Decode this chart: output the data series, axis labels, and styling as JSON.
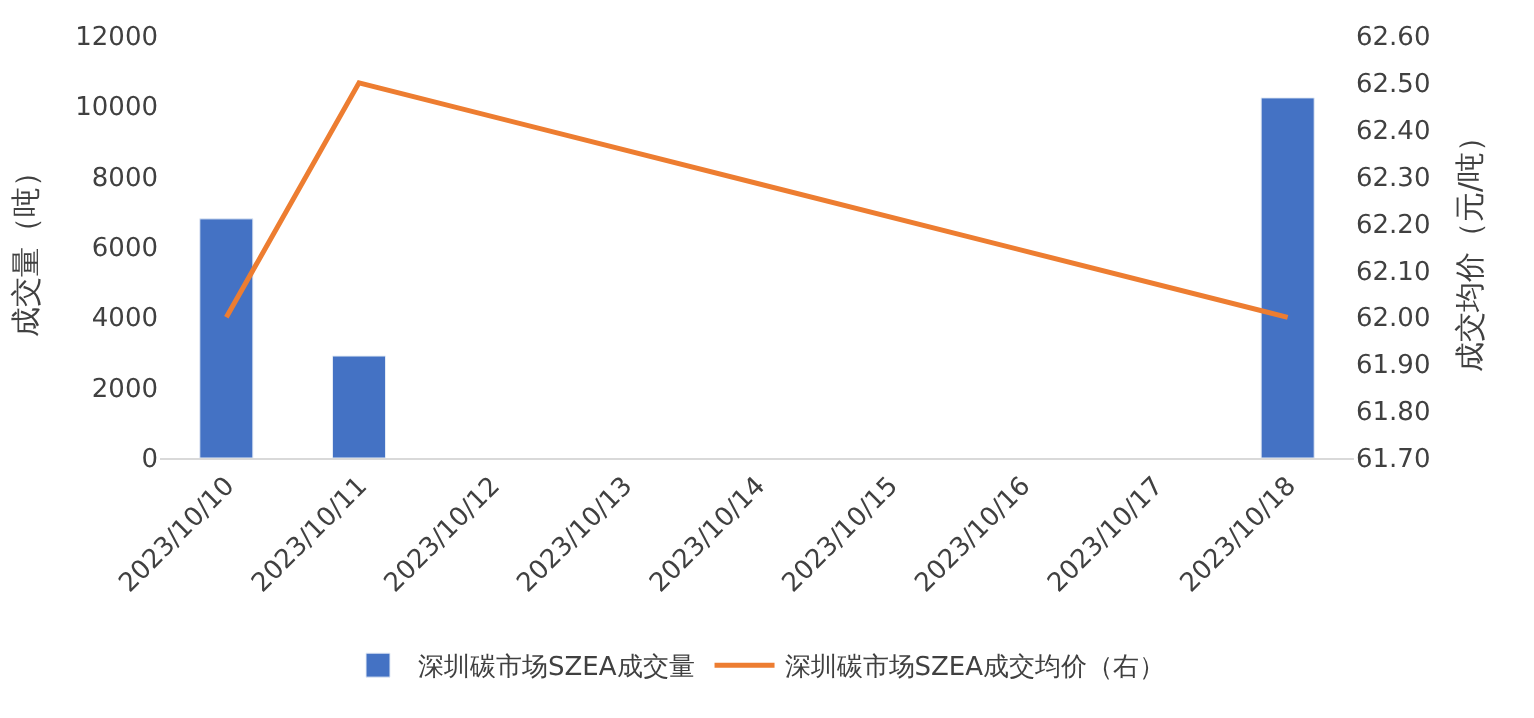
{
  "chart_data": {
    "type": "bar",
    "categories": [
      "2023/10/10",
      "2023/10/11",
      "2023/10/12",
      "2023/10/13",
      "2023/10/14",
      "2023/10/15",
      "2023/10/16",
      "2023/10/17",
      "2023/10/18"
    ],
    "series": [
      {
        "name": "深圳碳市场SZEA成交量",
        "color": "#4472c4",
        "values": [
          6800,
          2900,
          null,
          null,
          null,
          null,
          null,
          null,
          10240
        ]
      },
      {
        "name": "深圳碳市场SZEA成交均价（右）",
        "type": "line",
        "axis": "y2",
        "color": "#ed7d31",
        "values": [
          62.0,
          62.5,
          null,
          null,
          null,
          null,
          null,
          null,
          62.0
        ]
      }
    ],
    "ylabel": "成交量（吨）",
    "y2label": "成交均价（元/吨）",
    "ylim": [
      0,
      12000
    ],
    "yticks": [
      0,
      2000,
      4000,
      6000,
      8000,
      10000,
      12000
    ],
    "y2lim": [
      61.7,
      62.6
    ],
    "y2ticks": [
      {
        "value": 61.7,
        "label": "61.70"
      },
      {
        "value": 61.8,
        "label": "61.80"
      },
      {
        "value": 61.9,
        "label": "61.90"
      },
      {
        "value": 62.0,
        "label": "62.00"
      },
      {
        "value": 62.1,
        "label": "62.10"
      },
      {
        "value": 62.2,
        "label": "62.20"
      },
      {
        "value": 62.3,
        "label": "62.30"
      },
      {
        "value": 62.4,
        "label": "62.40"
      },
      {
        "value": 62.5,
        "label": "62.50"
      },
      {
        "value": 62.6,
        "label": "62.60"
      }
    ],
    "legend": "bottom",
    "marker": "none",
    "line_style": "solid"
  }
}
